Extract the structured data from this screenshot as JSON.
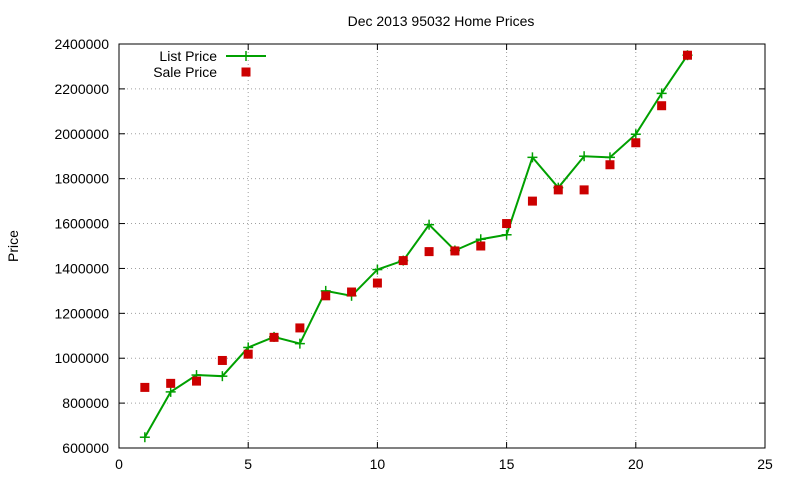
{
  "chart_data": {
    "type": "line",
    "title": "Dec 2013 95032 Home Prices",
    "xlabel": "",
    "ylabel": "Price",
    "xlim": [
      0,
      25
    ],
    "ylim": [
      600000,
      2400000
    ],
    "xticks": [
      0,
      5,
      10,
      15,
      20,
      25
    ],
    "yticks": [
      600000,
      800000,
      1000000,
      1200000,
      1400000,
      1600000,
      1800000,
      2000000,
      2200000,
      2400000
    ],
    "grid": true,
    "legend_position": "top-left",
    "series": [
      {
        "name": "List Price",
        "style": "line-plus",
        "color": "#00a000",
        "x": [
          1,
          2,
          3,
          4,
          5,
          6,
          7,
          8,
          9,
          10,
          11,
          12,
          13,
          14,
          15,
          16,
          17,
          18,
          19,
          20,
          21,
          22
        ],
        "values": [
          648000,
          850000,
          925000,
          920000,
          1048000,
          1095000,
          1065000,
          1300000,
          1278000,
          1395000,
          1435000,
          1595000,
          1480000,
          1530000,
          1550000,
          1895000,
          1760000,
          1900000,
          1895000,
          1998000,
          2180000,
          2350000
        ]
      },
      {
        "name": "Sale Price",
        "style": "square",
        "color": "#cc0000",
        "x": [
          1,
          2,
          3,
          4,
          5,
          6,
          7,
          8,
          9,
          10,
          11,
          12,
          13,
          14,
          15,
          16,
          17,
          18,
          19,
          20,
          21,
          22
        ],
        "values": [
          870000,
          888000,
          898000,
          990000,
          1018000,
          1093000,
          1135000,
          1278000,
          1295000,
          1335000,
          1435000,
          1475000,
          1478000,
          1500000,
          1600000,
          1700000,
          1750000,
          1750000,
          1862000,
          1960000,
          2125000,
          2350000
        ]
      }
    ]
  }
}
